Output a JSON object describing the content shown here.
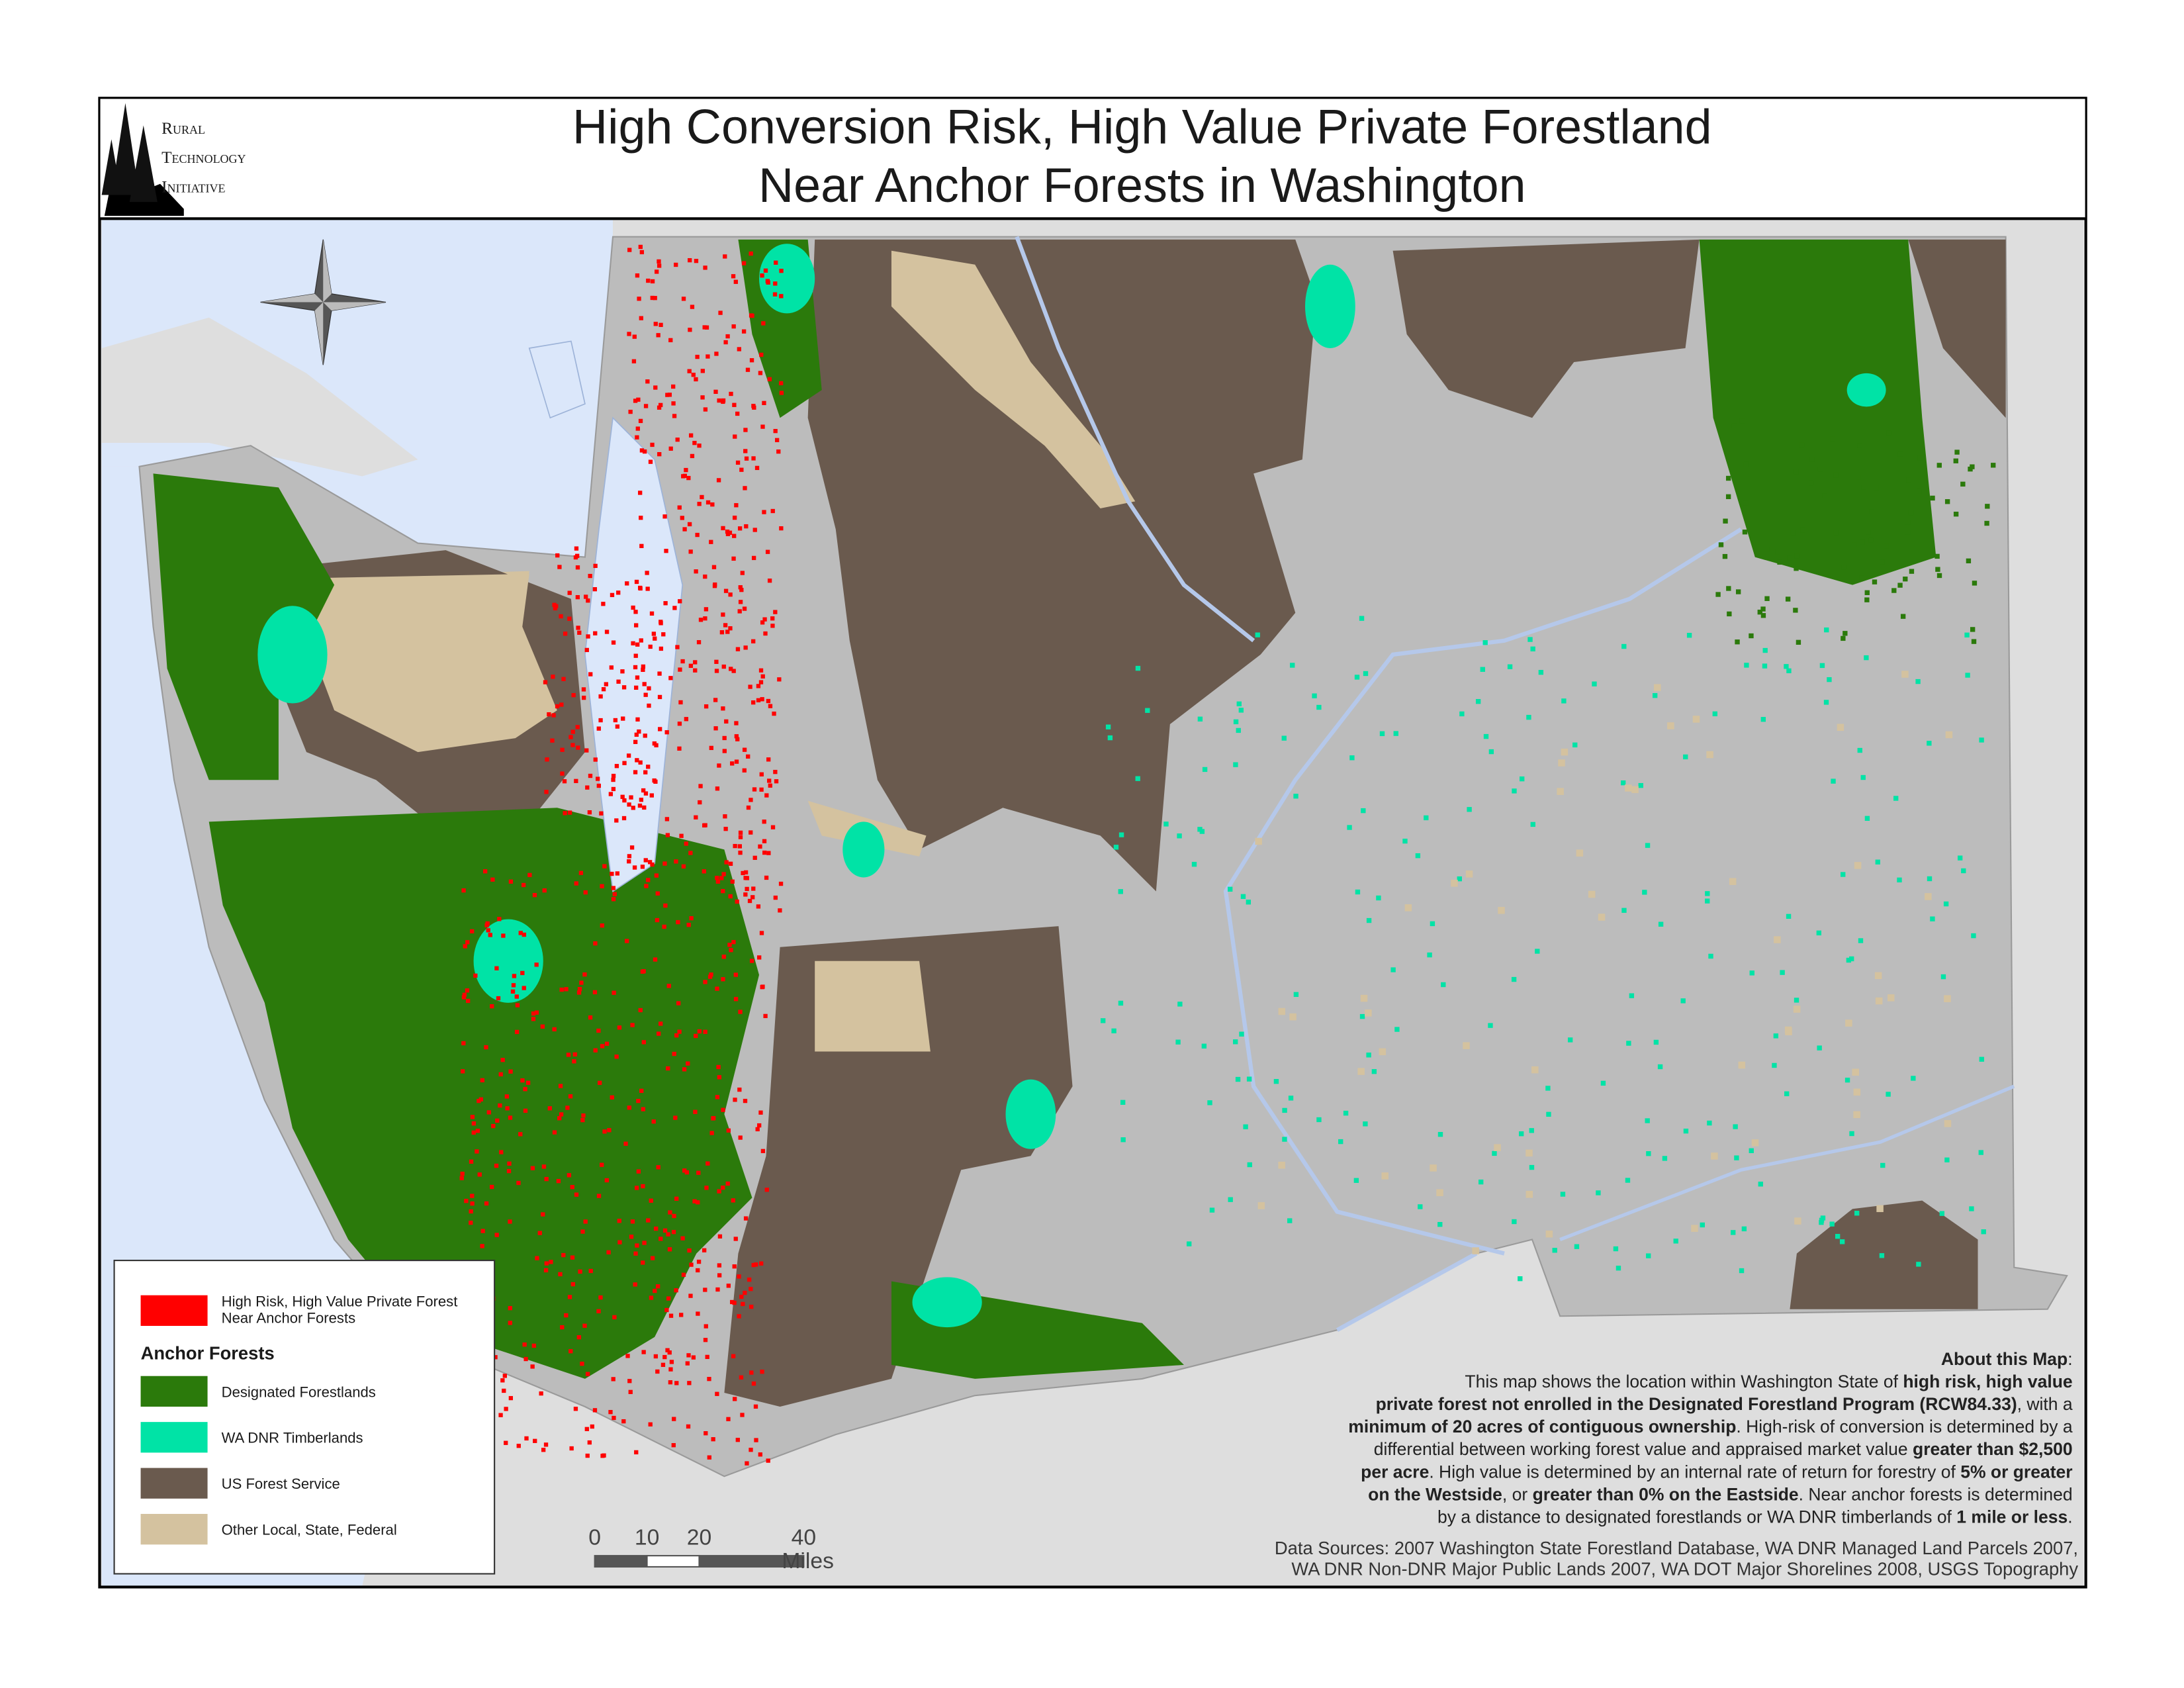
{
  "logo": {
    "lines": [
      "Rural",
      "Technology",
      "Initiative"
    ]
  },
  "header": {
    "title_lines": [
      "High Conversion Risk, High Value Private Forestland",
      "Near Anchor Forests in Washington"
    ]
  },
  "legend": {
    "risk": {
      "label_lines": [
        "High Risk, High Value Private Forest",
        "Near Anchor Forests"
      ],
      "color": "#ff0000"
    },
    "anchor_title": "Anchor Forests",
    "items": [
      {
        "label": "Designated Forestlands",
        "color": "#2b7a0b"
      },
      {
        "label": "WA DNR Timberlands",
        "color": "#00e3a6"
      },
      {
        "label": "US Forest Service",
        "color": "#6a5a4e"
      },
      {
        "label": "Other Local, State, Federal",
        "color": "#d4c29f"
      }
    ]
  },
  "scale_bar": {
    "ticks": [
      0,
      10,
      20,
      40
    ],
    "unit": "Miles"
  },
  "about": {
    "lines": [
      [
        {
          "text": "About this Map",
          "bold": true
        },
        {
          "text": ":"
        }
      ],
      [
        {
          "text": "This map shows the location within Washington State of "
        },
        {
          "text": "high risk, high value",
          "bold": true
        }
      ],
      [
        {
          "text": "private forest not enrolled in the Designated Forestland Program (RCW84.33)",
          "bold": true
        },
        {
          "text": ", with a"
        }
      ],
      [
        {
          "text": "minimum of 20 acres of contiguous ownership",
          "bold": true
        },
        {
          "text": ". High-risk of conversion is determined by a"
        }
      ],
      [
        {
          "text": "differential between working forest value and appraised market value "
        },
        {
          "text": "greater than $2,500",
          "bold": true
        }
      ],
      [
        {
          "text": "per acre",
          "bold": true
        },
        {
          "text": ". High value is determined by an internal rate of return for forestry of "
        },
        {
          "text": "5% or greater",
          "bold": true
        }
      ],
      [
        {
          "text": "on the Westside",
          "bold": true
        },
        {
          "text": ", or "
        },
        {
          "text": "greater than 0% on the Eastside",
          "bold": true
        },
        {
          "text": ". Near anchor forests is determined"
        }
      ],
      [
        {
          "text": "by a distance to designated forestlands or WA DNR timberlands of "
        },
        {
          "text": "1 mile or less",
          "bold": true
        },
        {
          "text": "."
        }
      ]
    ]
  },
  "sources": {
    "lines": [
      "Data Sources: 2007 Washington State Forestland Database, WA DNR Managed Land Parcels 2007,",
      "WA DNR Non-DNR Major Public Lands 2007,  WA DOT Major Shorelines 2008, USGS Topography"
    ]
  }
}
